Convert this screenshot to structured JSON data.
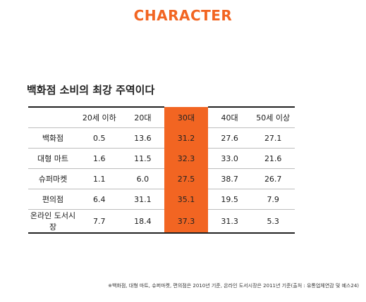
{
  "header": {
    "title": "CHARACTER"
  },
  "section": {
    "title": "백화점 소비의 최강 주역이다"
  },
  "table": {
    "columns": [
      "",
      "20세 이하",
      "20대",
      "30대",
      "40대",
      "50세 이상"
    ],
    "highlight_column": 3,
    "highlight_color": "#f26522",
    "rows": [
      {
        "label": "백화점",
        "values": [
          "0.5",
          "13.6",
          "31.2",
          "27.6",
          "27.1"
        ]
      },
      {
        "label": "대형 마트",
        "values": [
          "1.6",
          "11.5",
          "32.3",
          "33.0",
          "21.6"
        ]
      },
      {
        "label": "슈퍼마켓",
        "values": [
          "1.1",
          "6.0",
          "27.5",
          "38.7",
          "26.7"
        ]
      },
      {
        "label": "편의점",
        "values": [
          "6.4",
          "31.1",
          "35.1",
          "19.5",
          "7.9"
        ]
      },
      {
        "label": "온라인 도서시장",
        "values": [
          "7.7",
          "18.4",
          "37.3",
          "31.3",
          "5.3"
        ]
      }
    ]
  },
  "footnote": "※백화점, 대형 마트, 슈퍼마켓, 편의점은 2010년 기준, 온라인 도서시장은 2011년 기준(출처 : 유통업체연감 및 예스24)"
}
